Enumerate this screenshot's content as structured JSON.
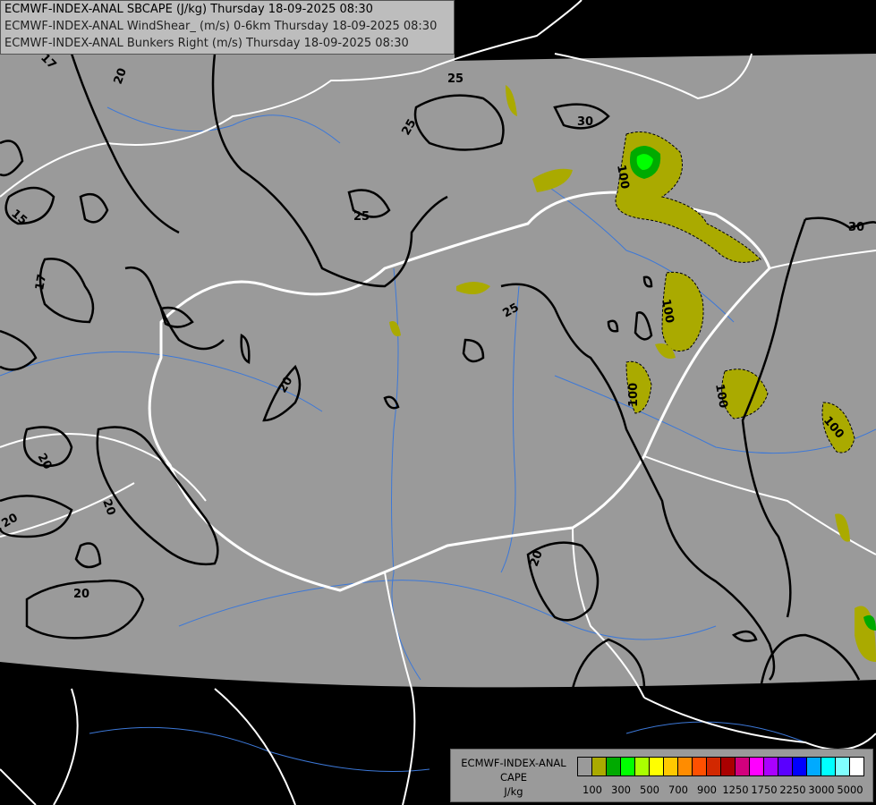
{
  "header": {
    "lines": [
      "ECMWF-INDEX-ANAL SBCAPE (J/kg) Thursday 18-09-2025 08:30",
      "ECMWF-INDEX-ANAL WindShear_ (m/s) 0-6km Thursday 18-09-2025 08:30",
      "ECMWF-INDEX-ANAL Bunkers Right (m/s) Thursday 18-09-2025 08:30"
    ]
  },
  "legend": {
    "title_lines": [
      "ECMWF-INDEX-ANAL",
      "CAPE",
      "J/kg"
    ],
    "colors": [
      "#9a9a9a",
      "#aaaa00",
      "#00aa00",
      "#00ff00",
      "#aaff00",
      "#ffff00",
      "#ffc800",
      "#ff8c00",
      "#ff5000",
      "#d22800",
      "#aa0000",
      "#d2007d",
      "#ff00ff",
      "#aa00ff",
      "#5a00ff",
      "#0000ff",
      "#00aaff",
      "#00ffff",
      "#80ffff",
      "#ffffff"
    ],
    "tick_labels": [
      "100",
      "300",
      "500",
      "700",
      "900",
      "1250",
      "1750",
      "2250",
      "3000",
      "5000"
    ]
  },
  "map": {
    "colors": {
      "background": "#000000",
      "domain": "#9a9a9a",
      "border": "#ffffff",
      "river": "#3c78d8",
      "contour": "#000000",
      "cape_low": "#aaaa00",
      "cape_mid": "#00aa00",
      "cape_high": "#00ff00"
    },
    "contour_labels": [
      "25",
      "25",
      "25",
      "30",
      "30",
      "20",
      "20",
      "20",
      "20",
      "20",
      "17",
      "17",
      "15",
      "25",
      "20",
      "100",
      "100",
      "100",
      "100",
      "100",
      "20"
    ]
  }
}
